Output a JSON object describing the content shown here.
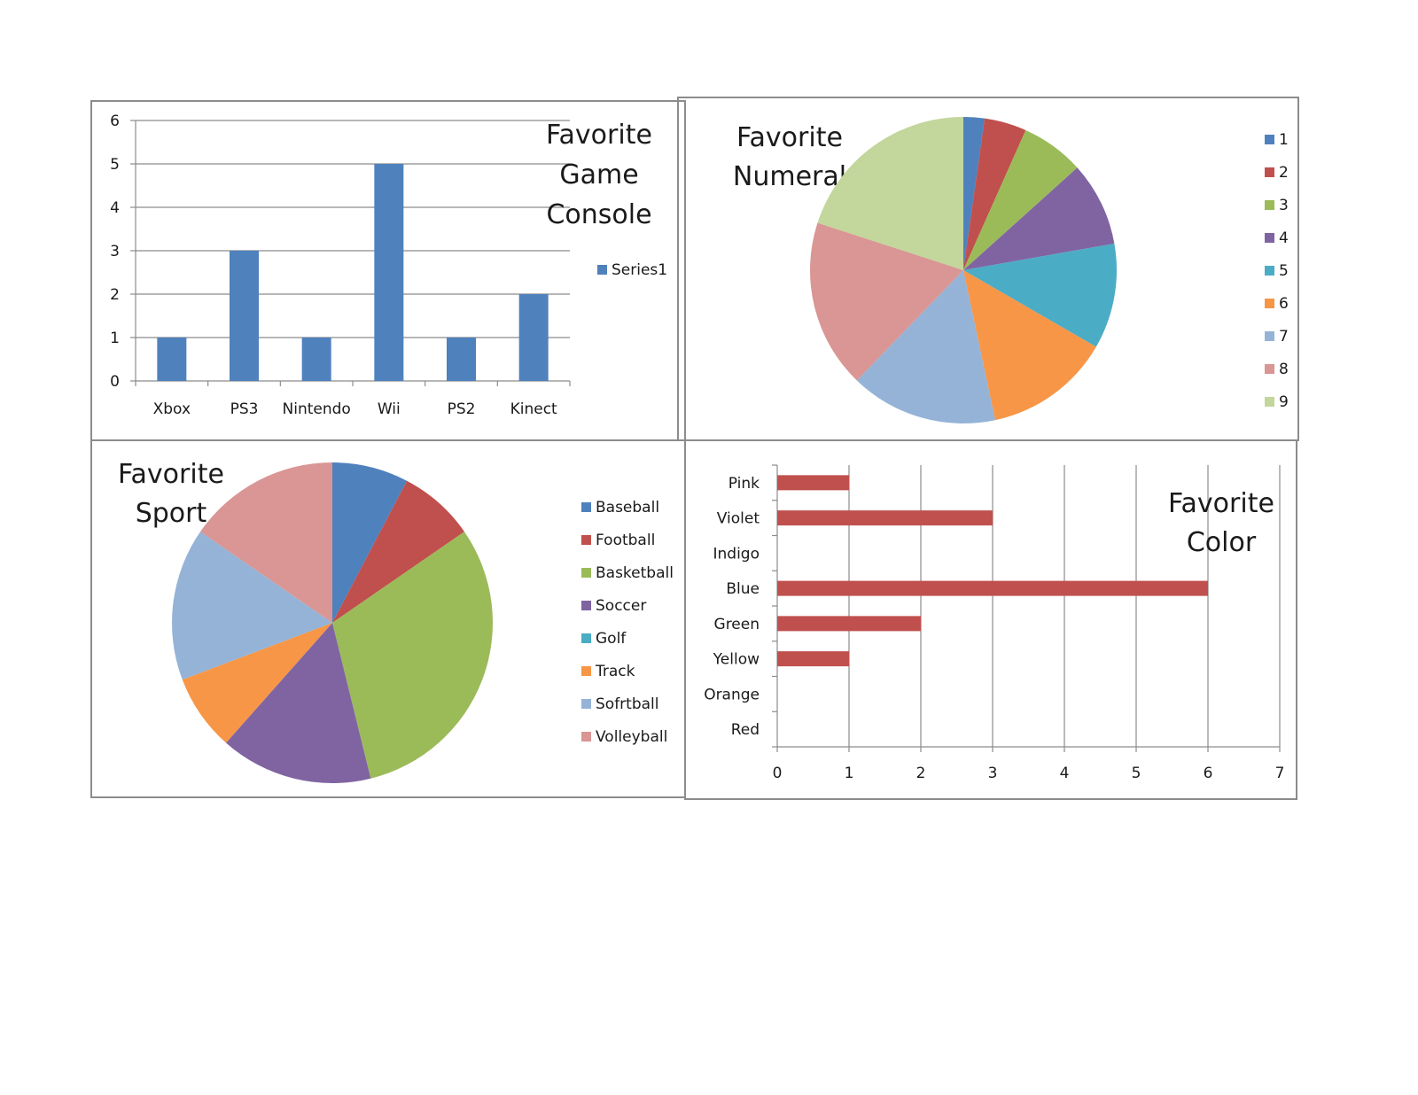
{
  "colors": {
    "frame": "#8c8c8c",
    "grid": "#8c8c8c",
    "bar_blue": "#4f81bd",
    "bar_red": "#c0504d",
    "text": "#1a1a1a"
  },
  "chart_data": [
    {
      "type": "bar",
      "title_lines": [
        "Favorite",
        "Game",
        "Console"
      ],
      "categories": [
        "Xbox",
        "PS3",
        "Nintendo",
        "Wii",
        "PS2",
        "Kinect"
      ],
      "series": [
        {
          "name": "Series1",
          "values": [
            1,
            3,
            1,
            5,
            1,
            2
          ]
        }
      ],
      "yticks": [
        "0",
        "1",
        "2",
        "3",
        "4",
        "5",
        "6"
      ],
      "ylim": [
        0,
        6
      ],
      "xlabel": "",
      "ylabel": "",
      "grid": true,
      "legend": "right"
    },
    {
      "type": "pie",
      "title_lines": [
        "Favorite",
        "Numeral"
      ],
      "labels": [
        "1",
        "2",
        "3",
        "4",
        "5",
        "6",
        "7",
        "8",
        "9"
      ],
      "values": [
        1,
        2,
        3,
        4,
        5,
        6,
        7,
        8,
        9
      ],
      "colors": [
        "#4f81bd",
        "#c0504d",
        "#9bbb59",
        "#8064a2",
        "#4bacc6",
        "#f79646",
        "#95b3d7",
        "#d99694",
        "#c3d69b"
      ],
      "legend": "right"
    },
    {
      "type": "pie",
      "title_lines": [
        "Favorite",
        "Sport"
      ],
      "labels": [
        "Baseball",
        "Football",
        "Basketball",
        "Soccer",
        "Golf",
        "Track",
        "Sofrtball",
        "Volleyball"
      ],
      "values": [
        1,
        1,
        4,
        2,
        0,
        1,
        2,
        2
      ],
      "colors": [
        "#4f81bd",
        "#c0504d",
        "#9bbb59",
        "#8064a2",
        "#4bacc6",
        "#f79646",
        "#95b3d7",
        "#d99694"
      ],
      "legend": "right"
    },
    {
      "type": "bar",
      "orientation": "horizontal",
      "title_lines": [
        "Favorite",
        "Color"
      ],
      "categories": [
        "Pink",
        "Violet",
        "Indigo",
        "Blue",
        "Green",
        "Yellow",
        "Orange",
        "Red"
      ],
      "values": [
        1,
        3,
        0,
        6,
        2,
        1,
        0,
        0
      ],
      "xticks": [
        "0",
        "1",
        "2",
        "3",
        "4",
        "5",
        "6",
        "7"
      ],
      "xlim": [
        0,
        7
      ],
      "grid": true,
      "legend": "none"
    }
  ]
}
